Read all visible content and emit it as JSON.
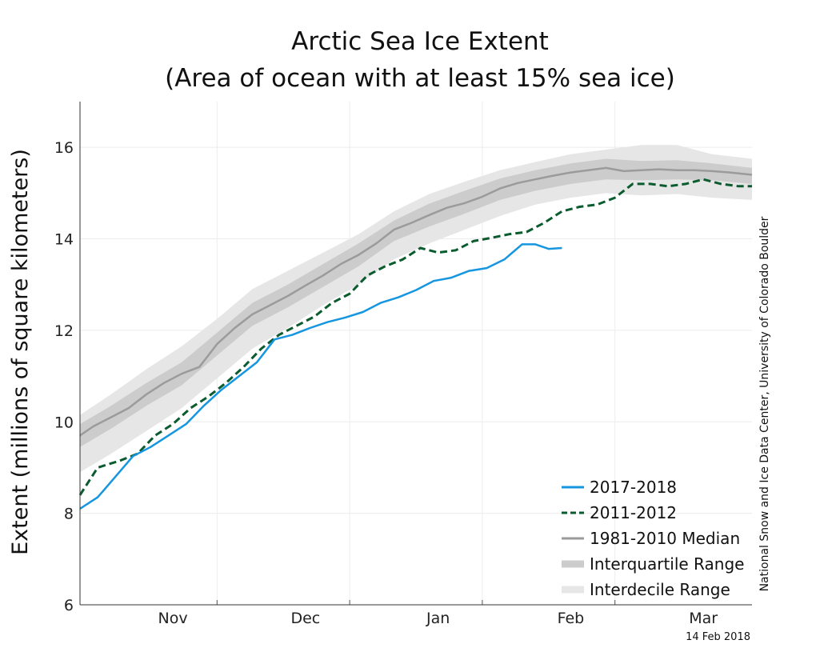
{
  "chart_data": {
    "type": "line",
    "title": "Arctic Sea Ice Extent",
    "subtitle": "(Area of ocean with at least 15% sea ice)",
    "ylabel": "Extent (millions of square kilometers)",
    "xlabel": "",
    "ylim": [
      6,
      17
    ],
    "yticks": [
      6,
      8,
      10,
      12,
      14,
      16
    ],
    "xlim": [
      "2017-10-23",
      "2018-03-24"
    ],
    "month_ticks": [
      {
        "label": "Nov",
        "date": "2017-11-13"
      },
      {
        "label": "Dec",
        "date": "2017-12-13"
      },
      {
        "label": "Jan",
        "date": "2018-01-12"
      },
      {
        "label": "Feb",
        "date": "2018-02-11"
      },
      {
        "label": "Mar",
        "date": "2018-03-13"
      }
    ],
    "minor_ticks": [
      "2017-11-23",
      "2017-12-23",
      "2018-01-22",
      "2018-02-21"
    ],
    "grid": true,
    "legend_position": "bottom-right",
    "series": [
      {
        "name": "1981-2010 Median",
        "kind": "median",
        "color": "#9b9b9b",
        "points": [
          [
            "2017-10-23",
            9.7
          ],
          [
            "2017-10-26",
            9.9
          ],
          [
            "2017-10-30",
            10.1
          ],
          [
            "2017-11-03",
            10.3
          ],
          [
            "2017-11-07",
            10.6
          ],
          [
            "2017-11-11",
            10.85
          ],
          [
            "2017-11-15",
            11.05
          ],
          [
            "2017-11-19",
            11.2
          ],
          [
            "2017-11-23",
            11.7
          ],
          [
            "2017-11-27",
            12.05
          ],
          [
            "2017-12-01",
            12.35
          ],
          [
            "2017-12-05",
            12.55
          ],
          [
            "2017-12-09",
            12.75
          ],
          [
            "2017-12-13",
            12.98
          ],
          [
            "2017-12-17",
            13.2
          ],
          [
            "2017-12-21",
            13.45
          ],
          [
            "2017-12-25",
            13.65
          ],
          [
            "2017-12-29",
            13.9
          ],
          [
            "2018-01-02",
            14.2
          ],
          [
            "2018-01-06",
            14.35
          ],
          [
            "2018-01-10",
            14.52
          ],
          [
            "2018-01-14",
            14.68
          ],
          [
            "2018-01-18",
            14.78
          ],
          [
            "2018-01-22",
            14.92
          ],
          [
            "2018-01-26",
            15.1
          ],
          [
            "2018-01-30",
            15.22
          ],
          [
            "2018-02-03",
            15.3
          ],
          [
            "2018-02-07",
            15.38
          ],
          [
            "2018-02-11",
            15.45
          ],
          [
            "2018-02-15",
            15.5
          ],
          [
            "2018-02-19",
            15.55
          ],
          [
            "2018-02-23",
            15.48
          ],
          [
            "2018-02-27",
            15.5
          ],
          [
            "2018-03-03",
            15.52
          ],
          [
            "2018-03-07",
            15.5
          ],
          [
            "2018-03-11",
            15.5
          ],
          [
            "2018-03-15",
            15.48
          ],
          [
            "2018-03-19",
            15.45
          ],
          [
            "2018-03-24",
            15.4
          ]
        ]
      },
      {
        "name": "Interquartile Range",
        "kind": "band",
        "color": "#cccccc",
        "points": [
          [
            "2017-10-23",
            9.45,
            9.95
          ],
          [
            "2017-10-30",
            9.85,
            10.35
          ],
          [
            "2017-11-07",
            10.35,
            10.85
          ],
          [
            "2017-11-15",
            10.8,
            11.3
          ],
          [
            "2017-11-23",
            11.45,
            11.95
          ],
          [
            "2017-12-01",
            12.1,
            12.6
          ],
          [
            "2017-12-09",
            12.5,
            13.0
          ],
          [
            "2017-12-17",
            12.95,
            13.45
          ],
          [
            "2017-12-25",
            13.4,
            13.9
          ],
          [
            "2018-01-02",
            13.95,
            14.4
          ],
          [
            "2018-01-10",
            14.27,
            14.77
          ],
          [
            "2018-01-18",
            14.55,
            15.05
          ],
          [
            "2018-01-26",
            14.85,
            15.32
          ],
          [
            "2018-02-03",
            15.05,
            15.5
          ],
          [
            "2018-02-11",
            15.2,
            15.65
          ],
          [
            "2018-02-19",
            15.3,
            15.75
          ],
          [
            "2018-02-27",
            15.28,
            15.7
          ],
          [
            "2018-03-07",
            15.3,
            15.72
          ],
          [
            "2018-03-15",
            15.28,
            15.65
          ],
          [
            "2018-03-24",
            15.2,
            15.55
          ]
        ]
      },
      {
        "name": "Interdecile Range",
        "kind": "band",
        "color": "#e6e6e6",
        "points": [
          [
            "2017-10-23",
            8.9,
            10.15
          ],
          [
            "2017-10-30",
            9.3,
            10.6
          ],
          [
            "2017-11-07",
            9.8,
            11.15
          ],
          [
            "2017-11-15",
            10.3,
            11.65
          ],
          [
            "2017-11-23",
            10.95,
            12.25
          ],
          [
            "2017-12-01",
            11.6,
            12.9
          ],
          [
            "2017-12-09",
            12.05,
            13.3
          ],
          [
            "2017-12-17",
            12.55,
            13.7
          ],
          [
            "2017-12-25",
            13.0,
            14.1
          ],
          [
            "2018-01-02",
            13.55,
            14.6
          ],
          [
            "2018-01-10",
            13.9,
            14.98
          ],
          [
            "2018-01-18",
            14.2,
            15.25
          ],
          [
            "2018-01-26",
            14.5,
            15.5
          ],
          [
            "2018-02-03",
            14.75,
            15.68
          ],
          [
            "2018-02-11",
            14.9,
            15.85
          ],
          [
            "2018-02-19",
            15.0,
            15.95
          ],
          [
            "2018-02-27",
            14.95,
            16.05
          ],
          [
            "2018-03-07",
            14.98,
            16.05
          ],
          [
            "2018-03-15",
            14.9,
            15.85
          ],
          [
            "2018-03-24",
            14.85,
            15.75
          ]
        ]
      },
      {
        "name": "2011-2012",
        "kind": "dashed",
        "color": "#0a5c2e",
        "points": [
          [
            "2017-10-23",
            8.4
          ],
          [
            "2017-10-27",
            9.0
          ],
          [
            "2017-11-01",
            9.15
          ],
          [
            "2017-11-05",
            9.3
          ],
          [
            "2017-11-09",
            9.7
          ],
          [
            "2017-11-13",
            9.95
          ],
          [
            "2017-11-17",
            10.3
          ],
          [
            "2017-11-21",
            10.55
          ],
          [
            "2017-11-25",
            10.85
          ],
          [
            "2017-11-29",
            11.2
          ],
          [
            "2017-12-03",
            11.6
          ],
          [
            "2017-12-07",
            11.9
          ],
          [
            "2017-12-11",
            12.1
          ],
          [
            "2017-12-15",
            12.3
          ],
          [
            "2017-12-19",
            12.6
          ],
          [
            "2017-12-23",
            12.8
          ],
          [
            "2017-12-27",
            13.2
          ],
          [
            "2017-12-31",
            13.4
          ],
          [
            "2018-01-04",
            13.55
          ],
          [
            "2018-01-08",
            13.8
          ],
          [
            "2018-01-12",
            13.7
          ],
          [
            "2018-01-16",
            13.75
          ],
          [
            "2018-01-20",
            13.95
          ],
          [
            "2018-01-24",
            14.02
          ],
          [
            "2018-01-28",
            14.1
          ],
          [
            "2018-02-01",
            14.15
          ],
          [
            "2018-02-05",
            14.35
          ],
          [
            "2018-02-09",
            14.6
          ],
          [
            "2018-02-13",
            14.7
          ],
          [
            "2018-02-17",
            14.75
          ],
          [
            "2018-02-21",
            14.9
          ],
          [
            "2018-02-25",
            15.2
          ],
          [
            "2018-03-01",
            15.2
          ],
          [
            "2018-03-05",
            15.15
          ],
          [
            "2018-03-09",
            15.2
          ],
          [
            "2018-03-13",
            15.3
          ],
          [
            "2018-03-17",
            15.2
          ],
          [
            "2018-03-21",
            15.15
          ],
          [
            "2018-03-24",
            15.15
          ]
        ]
      },
      {
        "name": "2017-2018",
        "kind": "solid",
        "color": "#1696e0",
        "points": [
          [
            "2017-10-23",
            8.1
          ],
          [
            "2017-10-27",
            8.35
          ],
          [
            "2017-10-31",
            8.8
          ],
          [
            "2017-11-04",
            9.25
          ],
          [
            "2017-11-08",
            9.45
          ],
          [
            "2017-11-12",
            9.7
          ],
          [
            "2017-11-16",
            9.95
          ],
          [
            "2017-11-20",
            10.35
          ],
          [
            "2017-11-24",
            10.7
          ],
          [
            "2017-11-28",
            11.0
          ],
          [
            "2017-12-02",
            11.3
          ],
          [
            "2017-12-06",
            11.8
          ],
          [
            "2017-12-10",
            11.9
          ],
          [
            "2017-12-14",
            12.05
          ],
          [
            "2017-12-18",
            12.18
          ],
          [
            "2017-12-22",
            12.28
          ],
          [
            "2017-12-26",
            12.4
          ],
          [
            "2017-12-30",
            12.6
          ],
          [
            "2018-01-03",
            12.72
          ],
          [
            "2018-01-07",
            12.88
          ],
          [
            "2018-01-11",
            13.08
          ],
          [
            "2018-01-15",
            13.15
          ],
          [
            "2018-01-19",
            13.3
          ],
          [
            "2018-01-23",
            13.36
          ],
          [
            "2018-01-27",
            13.55
          ],
          [
            "2018-01-31",
            13.88
          ],
          [
            "2018-02-03",
            13.88
          ],
          [
            "2018-02-06",
            13.78
          ],
          [
            "2018-02-09",
            13.8
          ]
        ]
      }
    ],
    "legend": [
      "2017-2018",
      "2011-2012",
      "1981-2010 Median",
      "Interquartile Range",
      "Interdecile Range"
    ]
  },
  "credit": "National Snow and Ice Data Center, University of Colorado Boulder",
  "date_stamp": "14 Feb 2018"
}
